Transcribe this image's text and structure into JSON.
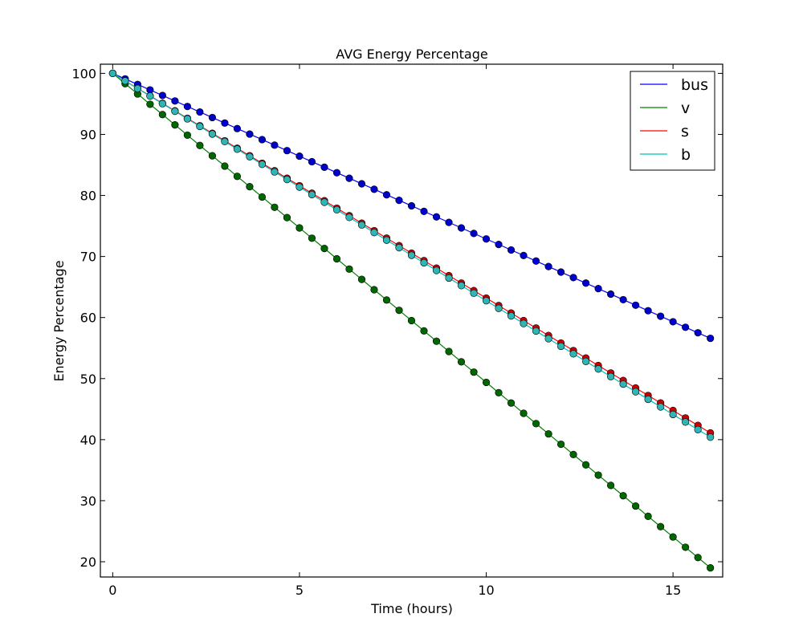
{
  "chart_data": {
    "type": "line",
    "title": "AVG Energy Percentage",
    "xlabel": "Time (hours)",
    "ylabel": "Energy Percentage",
    "xlim": [
      -0.33,
      16.33
    ],
    "ylim": [
      17.5,
      101.5
    ],
    "xticks": [
      0,
      5,
      10,
      15
    ],
    "yticks": [
      20,
      30,
      40,
      50,
      60,
      70,
      80,
      90,
      100
    ],
    "grid": false,
    "legend_position": "top-right",
    "markers": "circle",
    "x": [
      0,
      0.333,
      0.667,
      1,
      1.333,
      1.667,
      2,
      2.333,
      2.667,
      3,
      3.333,
      3.667,
      4,
      4.333,
      4.667,
      5,
      5.333,
      5.667,
      6,
      6.333,
      6.667,
      7,
      7.333,
      7.667,
      8,
      8.333,
      8.667,
      9,
      9.333,
      9.667,
      10,
      10.333,
      10.667,
      11,
      11.333,
      11.667,
      12,
      12.333,
      12.667,
      13,
      13.333,
      13.667,
      14,
      14.333,
      14.667,
      15,
      15.333,
      15.667,
      16
    ],
    "series": [
      {
        "name": "bus",
        "color": "#0000ff",
        "marker_color": "#0000cc",
        "start": 100,
        "end": 56.6
      },
      {
        "name": "v",
        "color": "#008000",
        "marker_color": "#006600",
        "start": 100,
        "end": 19.0
      },
      {
        "name": "s",
        "color": "#ff0000",
        "marker_color": "#cc0000",
        "start": 100,
        "end": 41.1
      },
      {
        "name": "b",
        "color": "#00bfbf",
        "marker_color": "#2fb5b5",
        "start": 100,
        "end": 40.4
      }
    ]
  }
}
